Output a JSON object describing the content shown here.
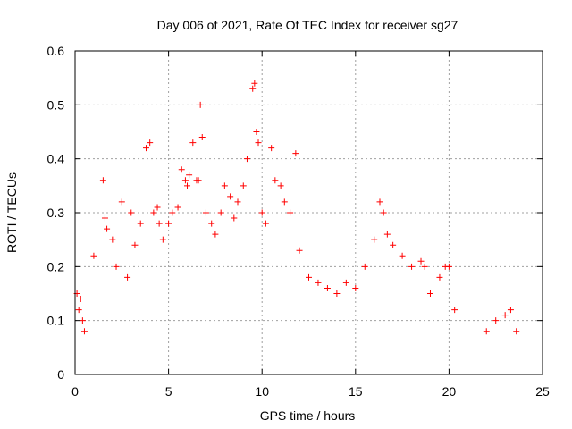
{
  "chart_data": {
    "type": "scatter",
    "title": "Day 006 of 2021, Rate Of TEC Index for receiver sg27",
    "xlabel": "GPS time / hours",
    "ylabel": "ROTI / TECUs",
    "xlim": [
      0,
      25
    ],
    "ylim": [
      0,
      0.6
    ],
    "xticks": [
      0,
      5,
      10,
      15,
      20,
      25
    ],
    "xtick_labels": [
      "0",
      "5",
      "10",
      "15",
      "20",
      "25"
    ],
    "yticks": [
      0,
      0.1,
      0.2,
      0.3,
      0.4,
      0.5,
      0.6
    ],
    "ytick_labels": [
      "0",
      "0.1",
      "0.2",
      "0.3",
      "0.4",
      "0.5",
      "0.6"
    ],
    "grid": true,
    "marker": "+",
    "color": "#ff0000",
    "series": [
      {
        "x": [
          0.1,
          0.2,
          0.3,
          0.4,
          0.5,
          1.0,
          1.5,
          1.6,
          1.7,
          2.0,
          2.2,
          2.5,
          2.8,
          3.0,
          3.2,
          3.5,
          3.8,
          4.0,
          4.2,
          4.4,
          4.5,
          4.7,
          5.0,
          5.2,
          5.5,
          5.7,
          5.9,
          6.0,
          6.1,
          6.3,
          6.5,
          6.6,
          6.7,
          6.8,
          7.0,
          7.3,
          7.5,
          7.8,
          8.0,
          8.3,
          8.5,
          8.7,
          9.0,
          9.2,
          9.5,
          9.6,
          9.7,
          9.8,
          10.0,
          10.2,
          10.5,
          10.7,
          11.0,
          11.2,
          11.5,
          11.8,
          12.0,
          12.5,
          13.0,
          13.5,
          14.0,
          14.5,
          15.0,
          15.5,
          16.0,
          16.3,
          16.5,
          16.7,
          17.0,
          17.5,
          18.0,
          18.5,
          18.7,
          19.0,
          19.5,
          19.8,
          20.0,
          20.3,
          22.0,
          22.5,
          23.0,
          23.3,
          23.6
        ],
        "y": [
          0.15,
          0.12,
          0.14,
          0.1,
          0.08,
          0.22,
          0.36,
          0.29,
          0.27,
          0.25,
          0.2,
          0.32,
          0.18,
          0.3,
          0.24,
          0.28,
          0.42,
          0.43,
          0.3,
          0.31,
          0.28,
          0.25,
          0.28,
          0.3,
          0.31,
          0.38,
          0.36,
          0.35,
          0.37,
          0.43,
          0.36,
          0.36,
          0.5,
          0.44,
          0.3,
          0.28,
          0.26,
          0.3,
          0.35,
          0.33,
          0.29,
          0.32,
          0.35,
          0.4,
          0.53,
          0.54,
          0.45,
          0.43,
          0.3,
          0.28,
          0.42,
          0.36,
          0.35,
          0.32,
          0.3,
          0.41,
          0.23,
          0.18,
          0.17,
          0.16,
          0.15,
          0.17,
          0.16,
          0.2,
          0.25,
          0.32,
          0.3,
          0.26,
          0.24,
          0.22,
          0.2,
          0.21,
          0.2,
          0.15,
          0.18,
          0.2,
          0.2,
          0.12,
          0.08,
          0.1,
          0.11,
          0.12,
          0.08
        ]
      }
    ]
  }
}
